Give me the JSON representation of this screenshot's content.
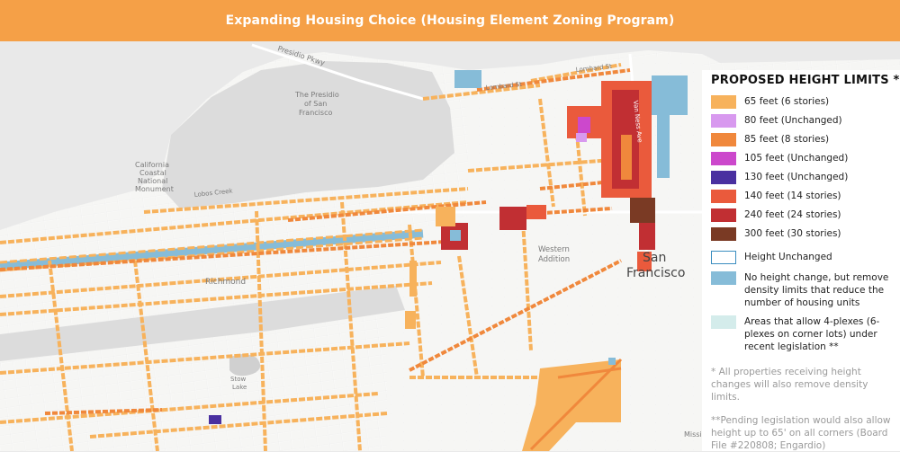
{
  "title": "Expanding Housing Choice (Housing Element Zoning Program)",
  "colors": {
    "title_bar": "#f5a047",
    "water": "#e9e9e9",
    "land": "#f6f6f4",
    "park": "#dcdcdc"
  },
  "map": {
    "labels": {
      "presidio_pkwy": "Presidio Pkwy",
      "presidio": "The Presidio of San Francisco",
      "presidio_line1": "The Presidio",
      "presidio_line2": "of San",
      "presidio_line3": "Francisco",
      "lombard1": "Lombard St",
      "lombard2": "Lombard St",
      "california1": "California",
      "california2": "Coastal",
      "california3": "National",
      "california4": "Monument",
      "lobos_creek": "Lobos Creek",
      "richmond": "Richmond",
      "western1": "Western",
      "western2": "Addition",
      "sf1": "San",
      "sf2": "Francisco",
      "stow1": "Stow",
      "stow2": "Lake",
      "van_ness": "Van Ness Ave",
      "mission": "Missio"
    }
  },
  "legend": {
    "title": "PROPOSED HEIGHT LIMITS *",
    "items": [
      {
        "label": "65 feet (6 stories)",
        "color": "#f7b25c"
      },
      {
        "label": "80 feet (Unchanged)",
        "color": "#d899ef"
      },
      {
        "label": "85 feet (8 stories)",
        "color": "#f0883c"
      },
      {
        "label": "105 feet (Unchanged)",
        "color": "#cc48cc"
      },
      {
        "label": "130 feet (Unchanged)",
        "color": "#4a30a0"
      },
      {
        "label": "140 feet (14 stories)",
        "color": "#ea5a3c"
      },
      {
        "label": "240 feet (24 stories)",
        "color": "#c12f33"
      },
      {
        "label": "300 feet (30 stories)",
        "color": "#7a3a24"
      }
    ],
    "unchanged": {
      "label": "Height Unchanged",
      "border": "#3b8ec0"
    },
    "density": {
      "label": "No height change, but remove density limits that reduce the number of housing units",
      "color": "#86bcd8"
    },
    "fourplex": {
      "label": "Areas that allow 4-plexes (6-plexes on corner lots) under recent legislation **",
      "color": "#d4eceb"
    },
    "note1": "* All properties receiving height changes will also remove density limits.",
    "note2": "**Pending legislation would also allow height up to 65' on all corners (Board File #220808; Engardio)"
  }
}
